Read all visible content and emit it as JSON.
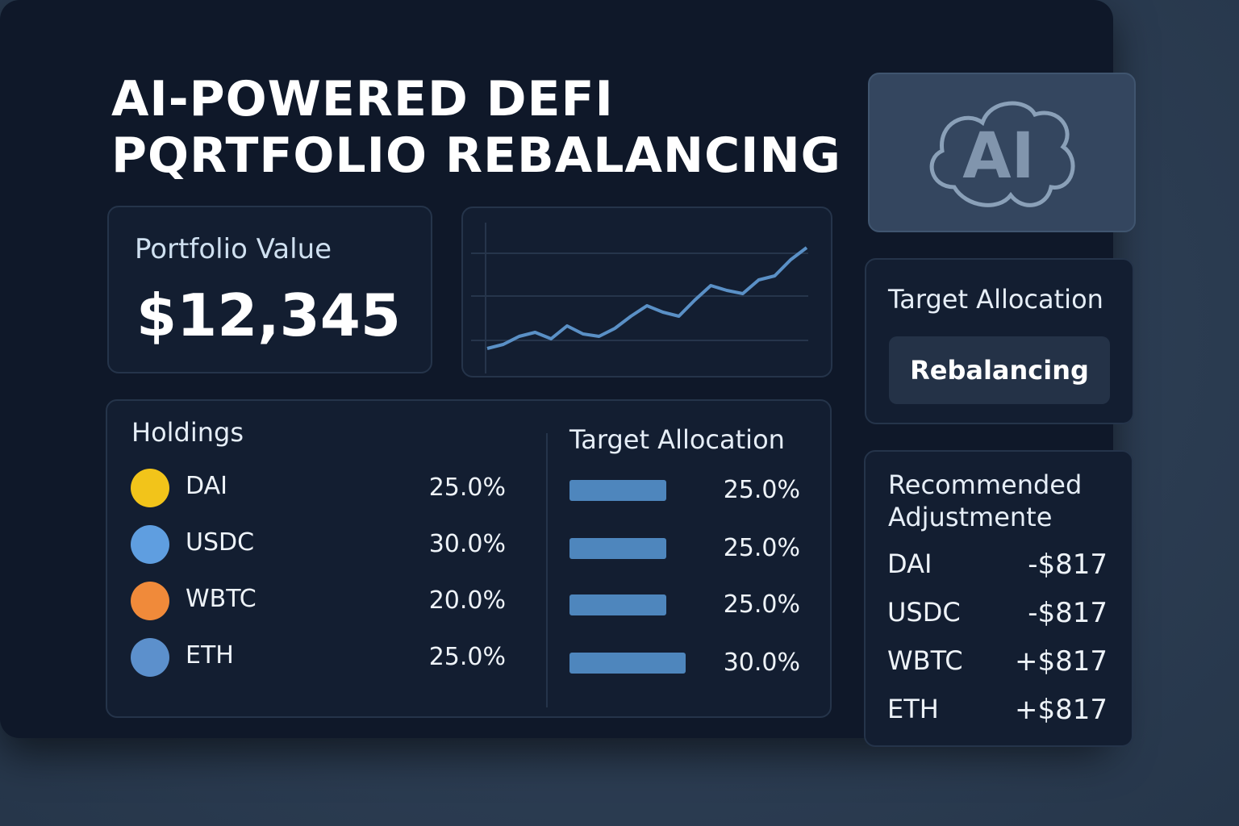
{
  "title": [
    "AI-POWERED DEFI",
    "PQRTFOLIO REBALANCING"
  ],
  "ai_badge": "AI",
  "portfolio": {
    "label": "Portfolio Value",
    "value": "$12,345"
  },
  "sparkline": {
    "values": [
      30,
      35,
      45,
      50,
      42,
      58,
      48,
      45,
      55,
      70,
      83,
      75,
      70,
      90,
      108,
      102,
      98,
      115,
      120,
      140,
      155
    ]
  },
  "holdings": {
    "title": "Holdings",
    "rows": [
      [
        "DAI",
        "25.0%"
      ],
      [
        "USDC",
        "30.0%"
      ],
      [
        "WBTC",
        "20.0%"
      ],
      [
        "ETH",
        "25.0%"
      ]
    ]
  },
  "target": {
    "title": "Target Allocation",
    "rows": [
      {
        "value": 25,
        "label": "25.0%"
      },
      {
        "value": 25,
        "label": "25.0%"
      },
      {
        "value": 25,
        "label": "25.0%"
      },
      {
        "value": 30,
        "label": "30.0%"
      }
    ]
  },
  "side_target": {
    "title": "Target Allocation",
    "button": "Rebalancing"
  },
  "adjustments": {
    "title": [
      "Recommended",
      "Adjustmente"
    ],
    "rows": [
      [
        "DAI",
        "-$817"
      ],
      [
        "USDC",
        "-$817"
      ],
      [
        "WBTC",
        "+$817"
      ],
      [
        "ETH",
        "+$817"
      ]
    ]
  }
}
